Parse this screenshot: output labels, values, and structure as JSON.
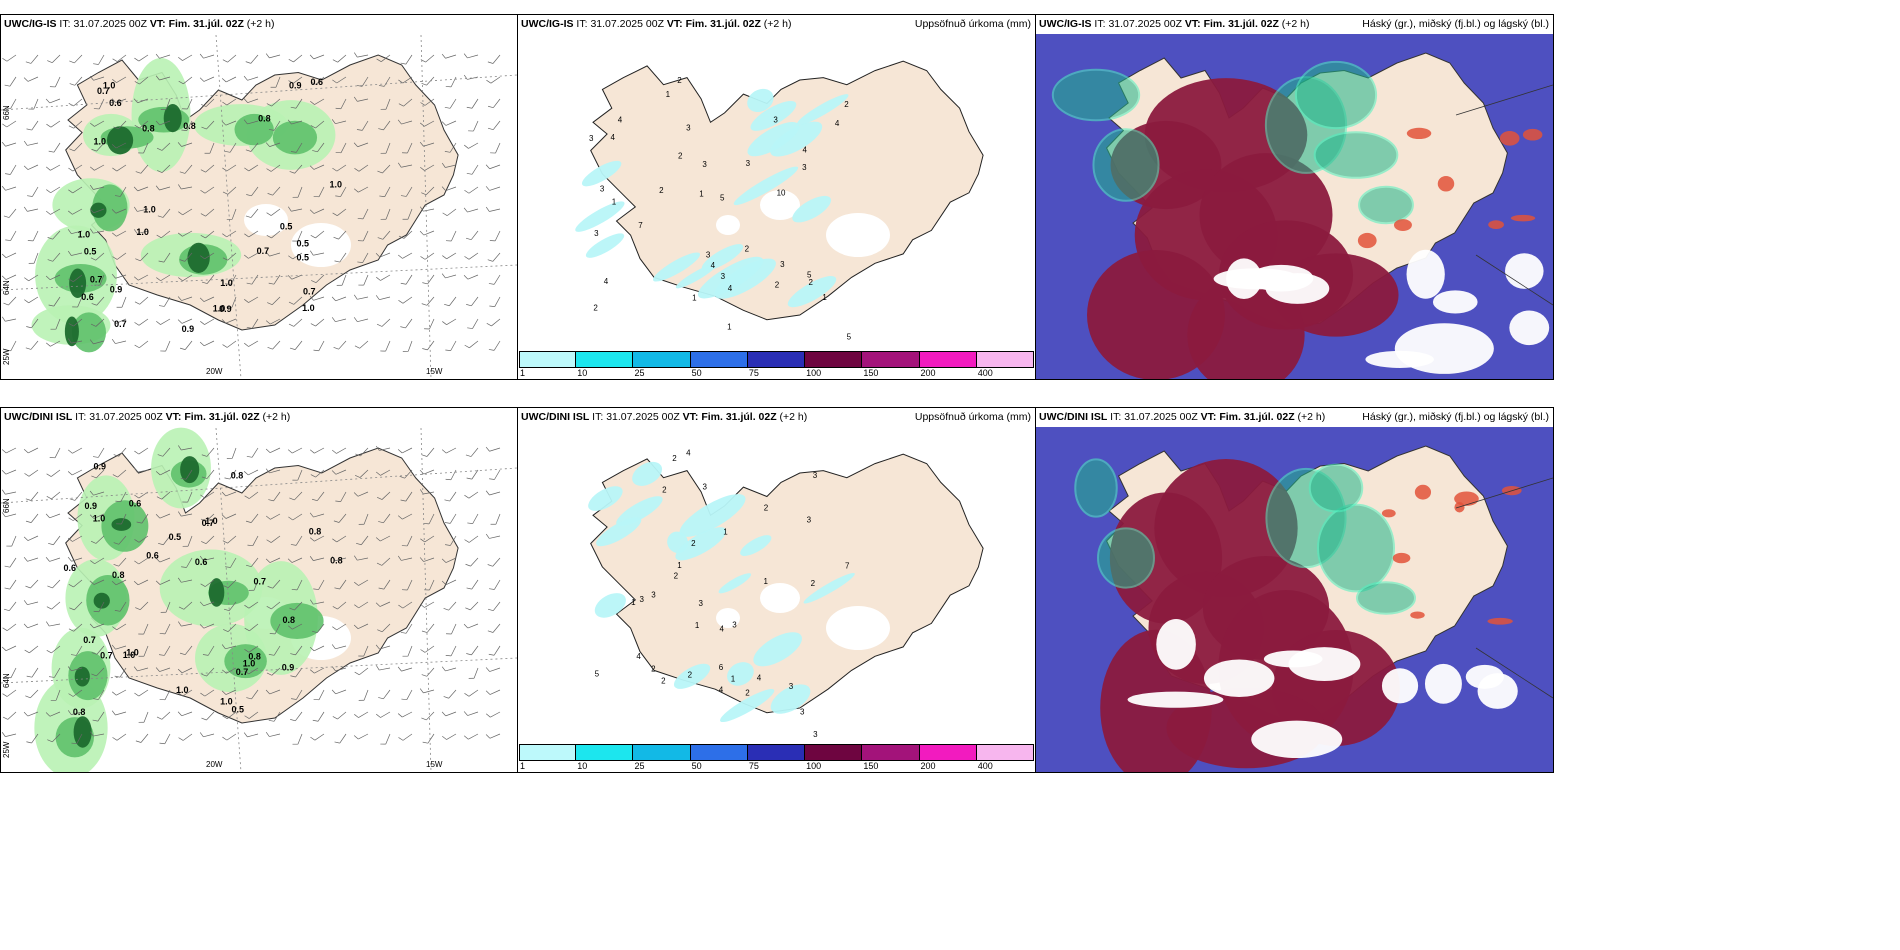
{
  "panels": [
    {
      "id": "p1",
      "model": "UWC/IG-IS",
      "it_label": "IT:",
      "it_value": "31.07.2025 00Z",
      "vt_label": "VT:",
      "vt_value": "Fim. 31.júl. 02Z",
      "lead": "(+2 h)",
      "right_title": "",
      "kind": "wind-rain",
      "lon_labels": [
        "20W",
        "15W"
      ],
      "lat_labels": [
        "66N",
        "64N",
        "25W"
      ],
      "value_labels": [
        "0.7",
        "0.6",
        "0.5",
        "1.0",
        "0.9",
        "0.7",
        "1.0",
        "1.0",
        "0.8",
        "1.0",
        "0.5",
        "0.7",
        "0.8",
        "1.0",
        "0.6",
        "0.5",
        "0.7",
        "0.9",
        "1.0",
        "0.5",
        "0.9",
        "1.0",
        "0.8",
        "1.0",
        "1.0",
        "0.7",
        "0.9",
        "0.6"
      ]
    },
    {
      "id": "p2",
      "model": "UWC/IG-IS",
      "it_label": "IT:",
      "it_value": "31.07.2025 00Z",
      "vt_label": "VT:",
      "vt_value": "Fim. 31.júl. 02Z",
      "lead": "(+2 h)",
      "right_title": "Uppsöfnuð úrkoma (mm)",
      "kind": "accum",
      "value_labels": [
        "1",
        "2",
        "2",
        "3",
        "1",
        "2",
        "5",
        "3",
        "3",
        "5",
        "7",
        "4",
        "3",
        "4",
        "3",
        "5",
        "3",
        "4",
        "2",
        "3",
        "4",
        "4",
        "10",
        "3",
        "2",
        "2",
        "3",
        "1",
        "2",
        "3",
        "1",
        "1",
        "2",
        "4",
        "4",
        "1",
        "3"
      ],
      "colorbar_ticks": [
        "1",
        "10",
        "25",
        "50",
        "75",
        "100",
        "150",
        "200",
        "400"
      ]
    },
    {
      "id": "p3",
      "model": "UWC/IG-IS",
      "it_label": "IT:",
      "it_value": "31.07.2025 00Z",
      "vt_label": "VT:",
      "vt_value": "Fim. 31.júl. 02Z",
      "lead": "(+2 h)",
      "right_title": "Háský (gr.), miðský (fj.bl.) og lágský (bl.)",
      "kind": "cloud"
    },
    {
      "id": "p4",
      "model": "UWC/DINI ISL",
      "it_label": "IT:",
      "it_value": "31.07.2025 00Z",
      "vt_label": "VT:",
      "vt_value": "Fim. 31.júl. 02Z",
      "lead": "(+2 h)",
      "right_title": "",
      "kind": "wind-rain",
      "lon_labels": [
        "20W",
        "15W"
      ],
      "lat_labels": [
        "66N",
        "64N",
        "25W"
      ],
      "value_labels": [
        "0.7",
        "0.6",
        "0.5",
        "1.0",
        "0.9",
        "1.0",
        "0.8",
        "1.0",
        "0.7",
        "0.9",
        "0.8",
        "1.0",
        "0.9",
        "0.8",
        "1.0",
        "0.7",
        "0.8",
        "0.6",
        "0.5",
        "0.6",
        "1.0",
        "0.8",
        "0.6",
        "0.7",
        "0.8",
        "1.0",
        "0.7",
        "0.8"
      ]
    },
    {
      "id": "p5",
      "model": "UWC/DINI ISL",
      "it_label": "IT:",
      "it_value": "31.07.2025 00Z",
      "vt_label": "VT:",
      "vt_value": "Fim. 31.júl. 02Z",
      "lead": "(+2 h)",
      "right_title": "Uppsöfnuð úrkoma (mm)",
      "kind": "accum",
      "value_labels": [
        "2",
        "1",
        "3",
        "2",
        "3",
        "1",
        "1",
        "2",
        "3",
        "4",
        "5",
        "7",
        "3",
        "3",
        "4",
        "2",
        "4",
        "3",
        "3",
        "2",
        "6",
        "2",
        "3",
        "1",
        "4",
        "2",
        "2",
        "2",
        "1",
        "3",
        "3",
        "4",
        "1",
        "2"
      ],
      "colorbar_ticks": [
        "1",
        "10",
        "25",
        "50",
        "75",
        "100",
        "150",
        "200",
        "400"
      ]
    },
    {
      "id": "p6",
      "model": "UWC/DINI ISL",
      "it_label": "IT:",
      "it_value": "31.07.2025 00Z",
      "vt_label": "VT:",
      "vt_value": "Fim. 31.júl. 02Z",
      "lead": "(+2 h)",
      "right_title": "Háský (gr.), miðský (fj.bl.) og lágský (bl.)",
      "kind": "cloud"
    }
  ],
  "colors": {
    "land": "#f6e6d6",
    "rain_light": "#b9f2b4",
    "rain_mid": "#5fc16b",
    "rain_dark": "#1e6b2e",
    "accum_cyan": "#b8f6f8",
    "cloud_high": "#1fb58a",
    "cloud_mid": "#8b1a3e",
    "cloud_low": "#4e50c0",
    "colorbar": [
      "#bdf9fb",
      "#1ce6ee",
      "#12b9e6",
      "#2d6fe8",
      "#2a2eb5",
      "#6e0540",
      "#a3137a",
      "#f21bbf",
      "#f7b6ee"
    ]
  }
}
